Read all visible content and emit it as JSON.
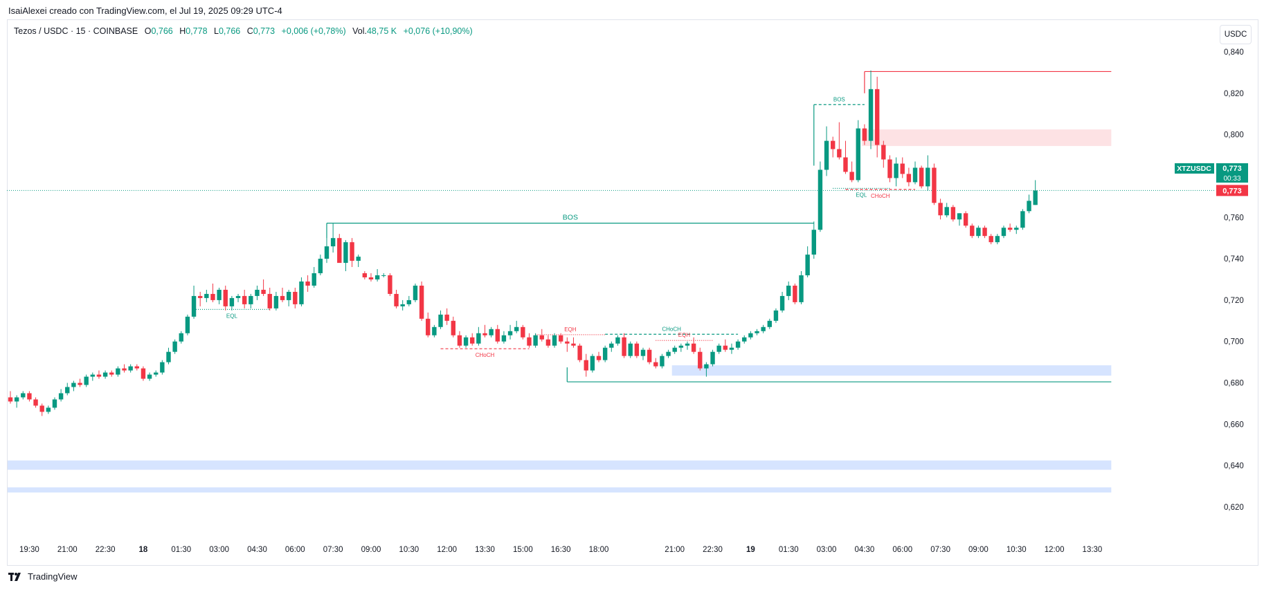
{
  "caption": "IsaiAlexei creado con TradingView.com, el Jul 19, 2025 09:29 UTC-4",
  "legend": {
    "symbol": "Tezos / USDC · 15 · COINBASE",
    "o_label": "O",
    "o": "0,766",
    "h_label": "H",
    "h": "0,778",
    "l_label": "L",
    "l": "0,766",
    "c_label": "C",
    "c": "0,773",
    "change": "+0,006 (+0,78%)",
    "vol_label": "Vol.",
    "vol": "48,75 K",
    "vol_change": "+0,076 (+10,90%)"
  },
  "currency_button": "USDC",
  "footer_brand": "TradingView",
  "footer_logo_icon": "tradingview-logo-icon",
  "colors": {
    "up": "#089981",
    "down": "#f23645",
    "demand_zone": "#d6e4ff",
    "supply_zone": "#fde2e4",
    "bos_line": "#089981"
  },
  "chart_data": {
    "type": "candlestick",
    "symbol_tag": "XTZUSDC",
    "last_price": "0,773",
    "countdown": "00:33",
    "last_price_marker": "0,773",
    "ylim": [
      0.606,
      0.846
    ],
    "y_ticks": [
      "0,840",
      "0,820",
      "0,800",
      "0,780",
      "0,760",
      "0,740",
      "0,720",
      "0,700",
      "0,680",
      "0,660",
      "0,640",
      "0,620"
    ],
    "y_tick_values": [
      0.84,
      0.82,
      0.8,
      0.78,
      0.76,
      0.74,
      0.72,
      0.7,
      0.68,
      0.66,
      0.64,
      0.62
    ],
    "x_ticks": [
      {
        "label": "19:30",
        "i": 3
      },
      {
        "label": "21:00",
        "i": 9
      },
      {
        "label": "22:30",
        "i": 15
      },
      {
        "label": "18",
        "i": 21,
        "bold": true
      },
      {
        "label": "01:30",
        "i": 27
      },
      {
        "label": "03:00",
        "i": 33
      },
      {
        "label": "04:30",
        "i": 39
      },
      {
        "label": "06:00",
        "i": 45
      },
      {
        "label": "07:30",
        "i": 51
      },
      {
        "label": "09:00",
        "i": 57
      },
      {
        "label": "10:30",
        "i": 63
      },
      {
        "label": "12:00",
        "i": 69
      },
      {
        "label": "13:30",
        "i": 75
      },
      {
        "label": "15:00",
        "i": 81
      },
      {
        "label": "16:30",
        "i": 87
      },
      {
        "label": "18:00",
        "i": 93
      },
      {
        "label": "21:00",
        "i": 105
      },
      {
        "label": "22:30",
        "i": 111
      },
      {
        "label": "19",
        "i": 117,
        "bold": true
      },
      {
        "label": "01:30",
        "i": 123
      },
      {
        "label": "03:00",
        "i": 129
      },
      {
        "label": "04:30",
        "i": 135
      },
      {
        "label": "06:00",
        "i": 141
      },
      {
        "label": "07:30",
        "i": 147
      },
      {
        "label": "09:00",
        "i": 153
      },
      {
        "label": "10:30",
        "i": 159
      },
      {
        "label": "12:00",
        "i": 165
      },
      {
        "label": "13:30",
        "i": 171
      }
    ],
    "candles": [
      [
        0.673,
        0.676,
        0.67,
        0.671
      ],
      [
        0.671,
        0.674,
        0.668,
        0.673
      ],
      [
        0.673,
        0.676,
        0.672,
        0.675
      ],
      [
        0.675,
        0.676,
        0.671,
        0.672
      ],
      [
        0.672,
        0.673,
        0.668,
        0.669
      ],
      [
        0.669,
        0.67,
        0.664,
        0.666
      ],
      [
        0.666,
        0.669,
        0.665,
        0.668
      ],
      [
        0.668,
        0.673,
        0.667,
        0.672
      ],
      [
        0.672,
        0.677,
        0.671,
        0.675
      ],
      [
        0.675,
        0.68,
        0.674,
        0.678
      ],
      [
        0.678,
        0.681,
        0.676,
        0.68
      ],
      [
        0.68,
        0.682,
        0.678,
        0.679
      ],
      [
        0.679,
        0.684,
        0.678,
        0.683
      ],
      [
        0.683,
        0.685,
        0.681,
        0.684
      ],
      [
        0.684,
        0.686,
        0.682,
        0.683
      ],
      [
        0.683,
        0.686,
        0.682,
        0.685
      ],
      [
        0.685,
        0.686,
        0.683,
        0.684
      ],
      [
        0.684,
        0.688,
        0.683,
        0.687
      ],
      [
        0.687,
        0.689,
        0.685,
        0.686
      ],
      [
        0.686,
        0.689,
        0.685,
        0.688
      ],
      [
        0.688,
        0.689,
        0.686,
        0.687
      ],
      [
        0.687,
        0.688,
        0.681,
        0.682
      ],
      [
        0.682,
        0.685,
        0.681,
        0.684
      ],
      [
        0.684,
        0.686,
        0.683,
        0.685
      ],
      [
        0.685,
        0.691,
        0.684,
        0.69
      ],
      [
        0.69,
        0.697,
        0.689,
        0.695
      ],
      [
        0.695,
        0.701,
        0.694,
        0.7
      ],
      [
        0.7,
        0.705,
        0.699,
        0.704
      ],
      [
        0.704,
        0.713,
        0.703,
        0.712
      ],
      [
        0.712,
        0.727,
        0.711,
        0.722
      ],
      [
        0.722,
        0.724,
        0.717,
        0.721
      ],
      [
        0.721,
        0.725,
        0.719,
        0.723
      ],
      [
        0.723,
        0.728,
        0.719,
        0.72
      ],
      [
        0.72,
        0.726,
        0.718,
        0.725
      ],
      [
        0.725,
        0.727,
        0.715,
        0.717
      ],
      [
        0.717,
        0.722,
        0.715,
        0.721
      ],
      [
        0.721,
        0.723,
        0.719,
        0.722
      ],
      [
        0.722,
        0.725,
        0.716,
        0.718
      ],
      [
        0.718,
        0.723,
        0.716,
        0.722
      ],
      [
        0.722,
        0.727,
        0.72,
        0.725
      ],
      [
        0.725,
        0.73,
        0.722,
        0.723
      ],
      [
        0.723,
        0.726,
        0.715,
        0.716
      ],
      [
        0.716,
        0.724,
        0.715,
        0.722
      ],
      [
        0.722,
        0.726,
        0.719,
        0.72
      ],
      [
        0.72,
        0.725,
        0.717,
        0.724
      ],
      [
        0.724,
        0.726,
        0.716,
        0.718
      ],
      [
        0.718,
        0.731,
        0.717,
        0.729
      ],
      [
        0.729,
        0.732,
        0.724,
        0.727
      ],
      [
        0.727,
        0.736,
        0.726,
        0.733
      ],
      [
        0.733,
        0.742,
        0.732,
        0.74
      ],
      [
        0.74,
        0.751,
        0.738,
        0.746
      ],
      [
        0.746,
        0.757,
        0.743,
        0.75
      ],
      [
        0.75,
        0.752,
        0.739,
        0.738
      ],
      [
        0.738,
        0.749,
        0.734,
        0.748
      ],
      [
        0.748,
        0.75,
        0.736,
        0.739
      ],
      [
        0.739,
        0.742,
        0.736,
        0.741
      ],
      [
        0.733,
        0.734,
        0.73,
        0.731
      ],
      [
        0.731,
        0.733,
        0.729,
        0.73
      ],
      [
        0.73,
        0.735,
        0.729,
        0.732
      ],
      [
        0.732,
        0.733,
        0.731,
        0.732
      ],
      [
        0.732,
        0.733,
        0.722,
        0.723
      ],
      [
        0.723,
        0.725,
        0.716,
        0.717
      ],
      [
        0.717,
        0.72,
        0.715,
        0.718
      ],
      [
        0.718,
        0.722,
        0.717,
        0.72
      ],
      [
        0.72,
        0.728,
        0.719,
        0.727
      ],
      [
        0.727,
        0.729,
        0.71,
        0.711
      ],
      [
        0.711,
        0.714,
        0.702,
        0.703
      ],
      [
        0.703,
        0.708,
        0.702,
        0.707
      ],
      [
        0.707,
        0.715,
        0.706,
        0.713
      ],
      [
        0.713,
        0.716,
        0.708,
        0.71
      ],
      [
        0.71,
        0.712,
        0.702,
        0.703
      ],
      [
        0.703,
        0.705,
        0.697,
        0.698
      ],
      [
        0.698,
        0.703,
        0.697,
        0.702
      ],
      [
        0.702,
        0.704,
        0.698,
        0.699
      ],
      [
        0.699,
        0.707,
        0.698,
        0.704
      ],
      [
        0.704,
        0.708,
        0.702,
        0.703
      ],
      [
        0.703,
        0.707,
        0.702,
        0.706
      ],
      [
        0.706,
        0.708,
        0.699,
        0.7
      ],
      [
        0.7,
        0.705,
        0.699,
        0.703
      ],
      [
        0.703,
        0.708,
        0.701,
        0.705
      ],
      [
        0.705,
        0.71,
        0.704,
        0.707
      ],
      [
        0.707,
        0.708,
        0.701,
        0.702
      ],
      [
        0.702,
        0.704,
        0.697,
        0.698
      ],
      [
        0.698,
        0.704,
        0.697,
        0.703
      ],
      [
        0.703,
        0.706,
        0.7,
        0.701
      ],
      [
        0.701,
        0.703,
        0.697,
        0.698
      ],
      [
        0.698,
        0.704,
        0.697,
        0.703
      ],
      [
        0.703,
        0.704,
        0.699,
        0.7
      ],
      [
        0.7,
        0.702,
        0.695,
        0.699
      ],
      [
        0.699,
        0.702,
        0.697,
        0.698
      ],
      [
        0.698,
        0.699,
        0.69,
        0.691
      ],
      [
        0.691,
        0.694,
        0.683,
        0.686
      ],
      [
        0.686,
        0.694,
        0.685,
        0.693
      ],
      [
        0.693,
        0.695,
        0.69,
        0.691
      ],
      [
        0.691,
        0.698,
        0.69,
        0.697
      ],
      [
        0.697,
        0.7,
        0.695,
        0.699
      ],
      [
        0.699,
        0.703,
        0.698,
        0.702
      ],
      [
        0.702,
        0.704,
        0.692,
        0.693
      ],
      [
        0.693,
        0.7,
        0.692,
        0.699
      ],
      [
        0.699,
        0.7,
        0.692,
        0.693
      ],
      [
        0.693,
        0.697,
        0.691,
        0.696
      ],
      [
        0.696,
        0.697,
        0.689,
        0.69
      ],
      [
        0.69,
        0.692,
        0.687,
        0.688
      ],
      [
        0.688,
        0.694,
        0.687,
        0.693
      ],
      [
        0.693,
        0.696,
        0.692,
        0.695
      ],
      [
        0.695,
        0.698,
        0.694,
        0.697
      ],
      [
        0.697,
        0.699,
        0.695,
        0.698
      ],
      [
        0.698,
        0.7,
        0.696,
        0.699
      ],
      [
        0.699,
        0.702,
        0.694,
        0.695
      ],
      [
        0.695,
        0.697,
        0.686,
        0.687
      ],
      [
        0.687,
        0.69,
        0.683,
        0.689
      ],
      [
        0.689,
        0.696,
        0.688,
        0.695
      ],
      [
        0.695,
        0.699,
        0.694,
        0.698
      ],
      [
        0.698,
        0.701,
        0.695,
        0.696
      ],
      [
        0.696,
        0.699,
        0.694,
        0.697
      ],
      [
        0.697,
        0.701,
        0.696,
        0.7
      ],
      [
        0.7,
        0.703,
        0.699,
        0.702
      ],
      [
        0.702,
        0.705,
        0.701,
        0.704
      ],
      [
        0.704,
        0.706,
        0.703,
        0.705
      ],
      [
        0.705,
        0.708,
        0.704,
        0.707
      ],
      [
        0.707,
        0.711,
        0.706,
        0.71
      ],
      [
        0.71,
        0.716,
        0.709,
        0.715
      ],
      [
        0.715,
        0.724,
        0.714,
        0.722
      ],
      [
        0.722,
        0.729,
        0.72,
        0.727
      ],
      [
        0.727,
        0.728,
        0.718,
        0.719
      ],
      [
        0.719,
        0.734,
        0.718,
        0.732
      ],
      [
        0.732,
        0.746,
        0.731,
        0.742
      ],
      [
        0.742,
        0.758,
        0.74,
        0.754
      ],
      [
        0.754,
        0.787,
        0.753,
        0.783
      ],
      [
        0.783,
        0.804,
        0.78,
        0.797
      ],
      [
        0.797,
        0.799,
        0.789,
        0.793
      ],
      [
        0.793,
        0.806,
        0.788,
        0.789
      ],
      [
        0.789,
        0.797,
        0.781,
        0.782
      ],
      [
        0.782,
        0.787,
        0.777,
        0.778
      ],
      [
        0.778,
        0.807,
        0.777,
        0.803
      ],
      [
        0.803,
        0.805,
        0.795,
        0.797
      ],
      [
        0.797,
        0.831,
        0.793,
        0.822
      ],
      [
        0.822,
        0.828,
        0.789,
        0.795
      ],
      [
        0.795,
        0.797,
        0.784,
        0.788
      ],
      [
        0.788,
        0.79,
        0.777,
        0.779
      ],
      [
        0.779,
        0.789,
        0.775,
        0.786
      ],
      [
        0.786,
        0.789,
        0.779,
        0.781
      ],
      [
        0.781,
        0.784,
        0.775,
        0.777
      ],
      [
        0.777,
        0.787,
        0.776,
        0.784
      ],
      [
        0.784,
        0.785,
        0.774,
        0.775
      ],
      [
        0.775,
        0.79,
        0.773,
        0.784
      ],
      [
        0.784,
        0.786,
        0.766,
        0.767
      ],
      [
        0.767,
        0.769,
        0.759,
        0.761
      ],
      [
        0.761,
        0.767,
        0.76,
        0.765
      ],
      [
        0.765,
        0.766,
        0.758,
        0.759
      ],
      [
        0.759,
        0.762,
        0.756,
        0.762
      ],
      [
        0.762,
        0.763,
        0.755,
        0.756
      ],
      [
        0.756,
        0.757,
        0.75,
        0.751
      ],
      [
        0.751,
        0.756,
        0.75,
        0.755
      ],
      [
        0.755,
        0.756,
        0.75,
        0.751
      ],
      [
        0.751,
        0.752,
        0.747,
        0.748
      ],
      [
        0.748,
        0.752,
        0.747,
        0.751
      ],
      [
        0.751,
        0.756,
        0.75,
        0.755
      ],
      [
        0.755,
        0.757,
        0.753,
        0.754
      ],
      [
        0.754,
        0.756,
        0.752,
        0.755
      ],
      [
        0.755,
        0.764,
        0.754,
        0.763
      ],
      [
        0.763,
        0.771,
        0.762,
        0.768
      ],
      [
        0.766,
        0.778,
        0.766,
        0.773
      ]
    ],
    "zones": [
      {
        "type": "supply",
        "from_i": 135,
        "to_i": 174,
        "top": 0.8025,
        "bottom": 0.7945
      },
      {
        "type": "demand",
        "from_i": 105,
        "to_i": 174,
        "top": 0.6885,
        "bottom": 0.6835
      },
      {
        "type": "demand",
        "from_i": 0,
        "to_i": 174,
        "top": 0.6425,
        "bottom": 0.638
      },
      {
        "type": "demand",
        "from_i": 0,
        "to_i": 174,
        "top": 0.6295,
        "bottom": 0.627
      }
    ],
    "levels": [
      {
        "kind": "bos",
        "label": "BOS",
        "from_i": 50,
        "to_i": 127,
        "y": 0.7572,
        "style": "solid",
        "color": "up"
      },
      {
        "kind": "bos",
        "label": "BOS",
        "from_i": 127,
        "to_i": 135,
        "y": 0.8145,
        "style": "dashed",
        "color": "up"
      },
      {
        "kind": "resistance",
        "label": "",
        "from_i": 135,
        "to_i": 174,
        "y": 0.8305,
        "style": "solid",
        "color": "down"
      },
      {
        "kind": "support",
        "label": "",
        "from_i": 88,
        "to_i": 174,
        "y": 0.6805,
        "style": "solid",
        "color": "up"
      },
      {
        "kind": "eql",
        "label": "EQL",
        "from_i": 29,
        "to_i": 41,
        "y": 0.7155,
        "style": "dotted",
        "color": "up"
      },
      {
        "kind": "choch",
        "label": "CHoCH",
        "from_i": 68,
        "to_i": 82,
        "y": 0.6965,
        "style": "dashed",
        "color": "down"
      },
      {
        "kind": "eqh",
        "label": "EQH",
        "from_i": 83,
        "to_i": 94,
        "y": 0.7033,
        "style": "dotted",
        "color": "down"
      },
      {
        "kind": "choch",
        "label": "CHoCH",
        "from_i": 94,
        "to_i": 115,
        "y": 0.7035,
        "style": "dashed",
        "color": "up"
      },
      {
        "kind": "eqh",
        "label": "EQH",
        "from_i": 102,
        "to_i": 111,
        "y": 0.7005,
        "style": "dotted",
        "color": "down"
      },
      {
        "kind": "eql",
        "label": "EQL",
        "from_i": 130,
        "to_i": 139,
        "y": 0.774,
        "style": "dotted",
        "color": "up"
      },
      {
        "kind": "choch",
        "label": "CHoCH",
        "from_i": 132,
        "to_i": 143,
        "y": 0.7735,
        "style": "dashed",
        "color": "down"
      }
    ]
  }
}
